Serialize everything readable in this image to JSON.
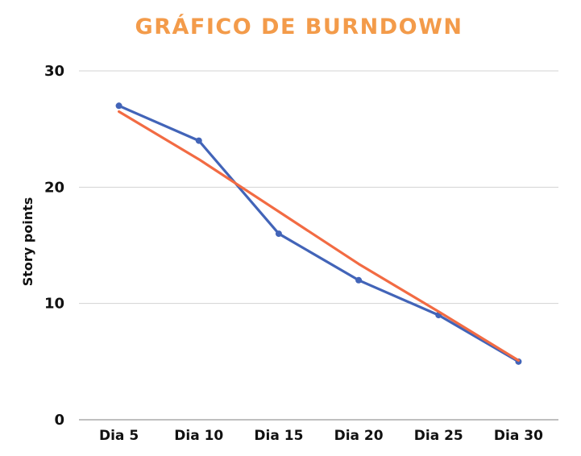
{
  "chart_data": {
    "type": "line",
    "title": "GRÁFICO DE BURNDOWN",
    "xlabel": "",
    "ylabel": "Story points",
    "categories": [
      "Dia 5",
      "Dia 10",
      "Dia 15",
      "Dia 20",
      "Dia 25",
      "Dia 30"
    ],
    "ylim": [
      0,
      30
    ],
    "yticks": [
      "0",
      "10",
      "20",
      "30"
    ],
    "grid": true,
    "legend": "none",
    "series": [
      {
        "values": [
          27,
          24,
          16,
          12,
          9,
          5
        ],
        "color": "#4264b8",
        "markers": true
      },
      {
        "values": [
          26.5,
          22.4,
          17.9,
          13.4,
          9.3,
          5.1
        ],
        "color": "#f26b43",
        "markers": false
      }
    ]
  },
  "colors": {
    "title": "#f39b4a",
    "grid": "#d3d3d3",
    "axis": "#999999",
    "text": "#111111"
  }
}
